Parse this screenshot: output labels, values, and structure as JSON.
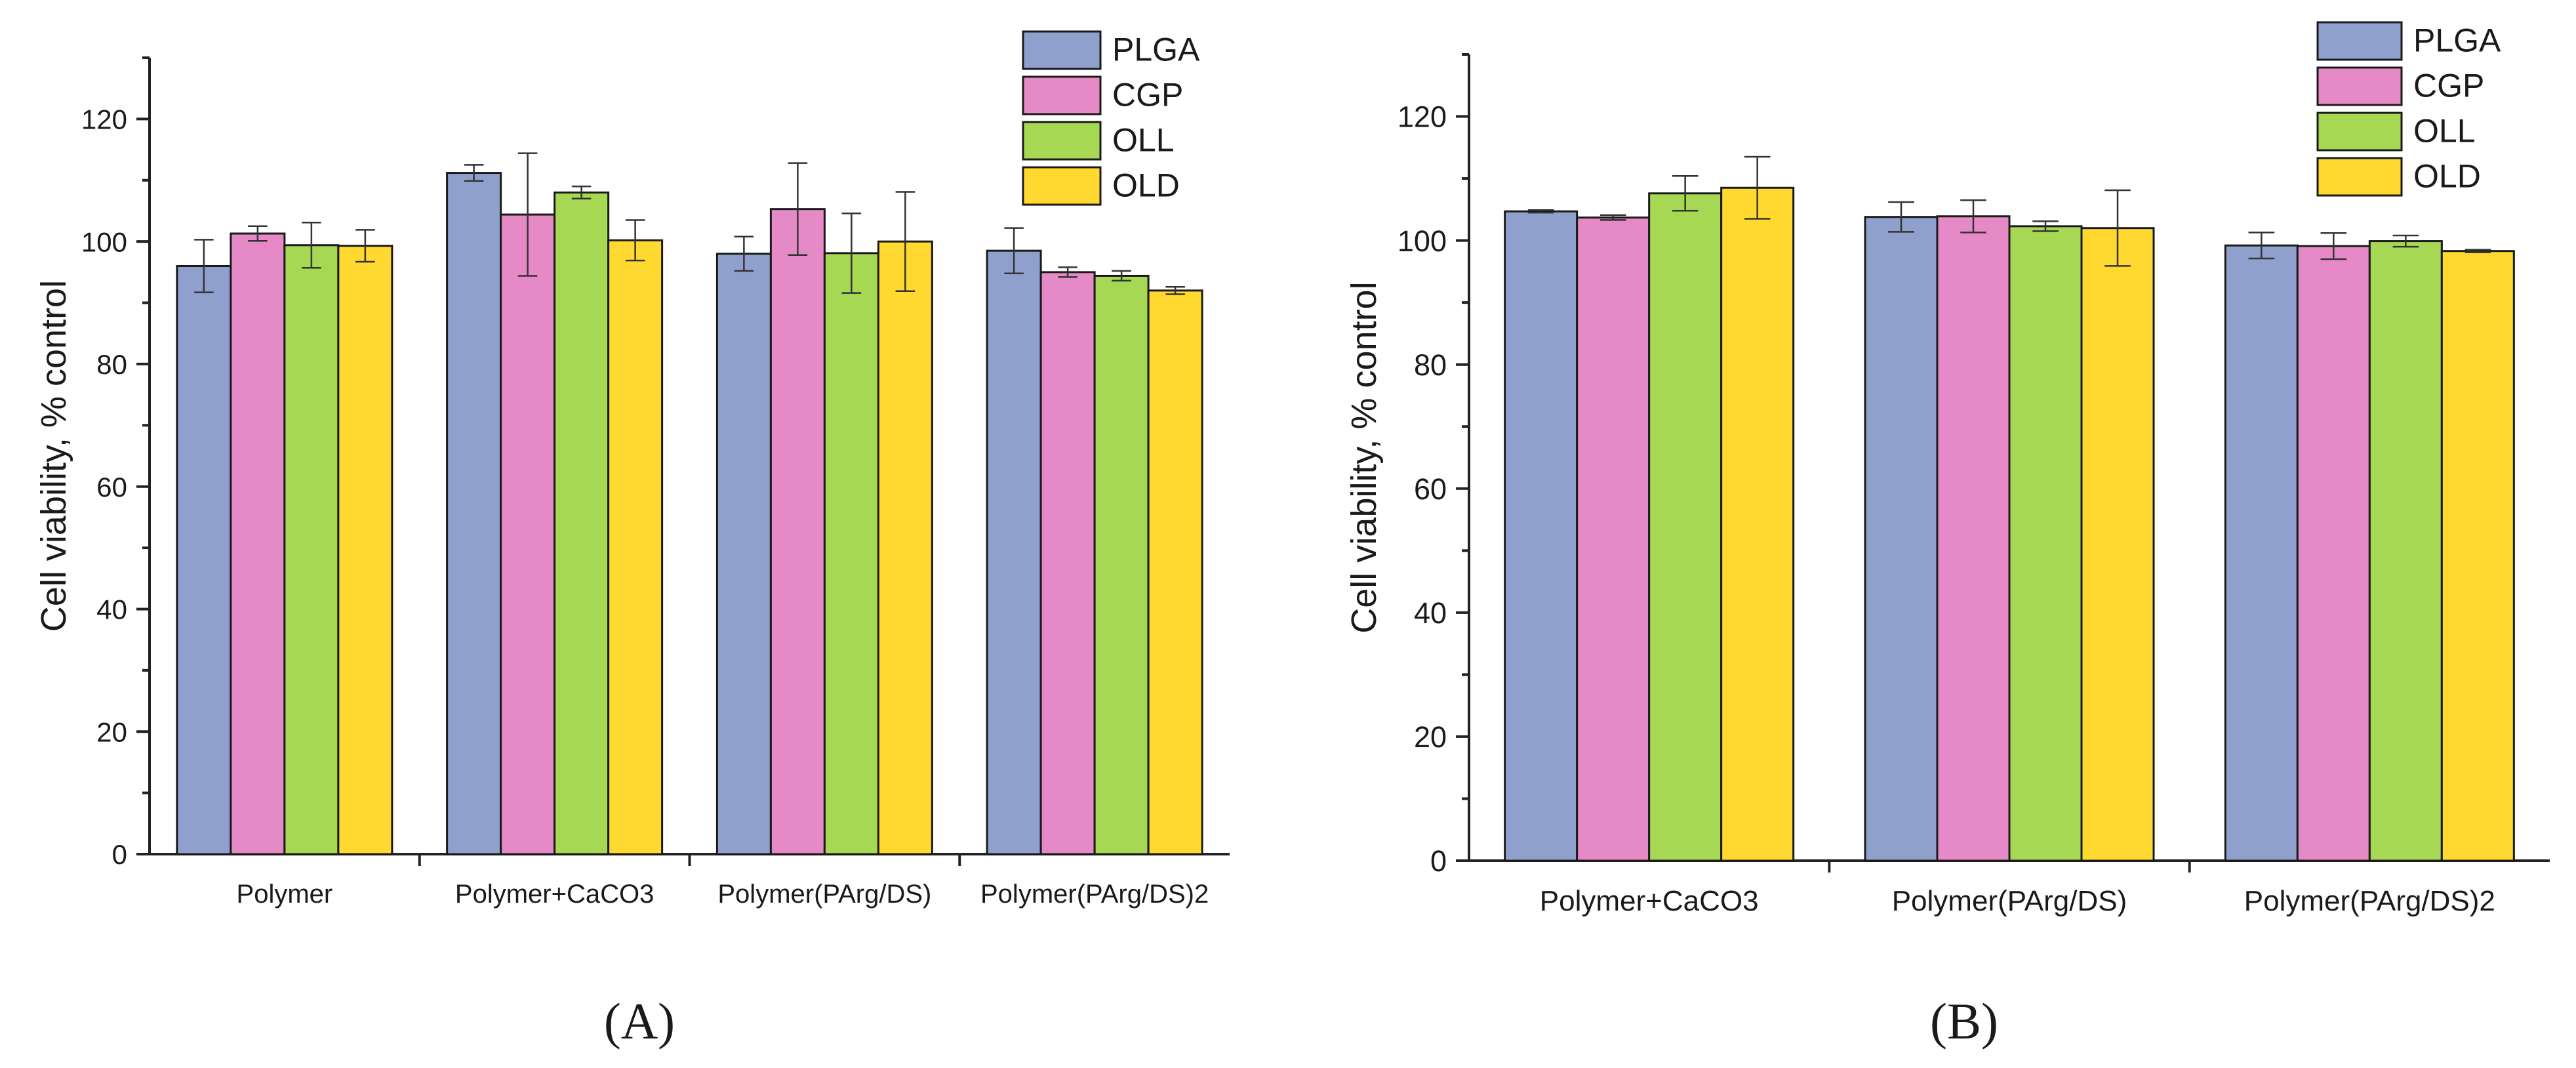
{
  "figure": {
    "panel_labels": [
      "(A)",
      "(B)"
    ]
  },
  "chart_data": [
    {
      "type": "bar",
      "panel": "(A)",
      "title": "",
      "xlabel": "",
      "ylabel": "Cell viability, % control",
      "ylim": [
        0,
        130
      ],
      "yticks": [
        0,
        20,
        40,
        60,
        80,
        100,
        120
      ],
      "grid": false,
      "legend_position": "top-right",
      "categories": [
        "Polymer",
        "Polymer+CaCO3",
        "Polymer(PArg/DS)",
        "Polymer(PArg/DS)2"
      ],
      "series": [
        {
          "name": "PLGA",
          "color": "#8fa0cc",
          "values": [
            96,
            111.2,
            98,
            98.5
          ],
          "errors": [
            4.3,
            1.3,
            2.8,
            3.7
          ]
        },
        {
          "name": "CGP",
          "color": "#e58ac6",
          "values": [
            101.3,
            104.4,
            105.3,
            95
          ],
          "errors": [
            1.2,
            10,
            7.5,
            0.8
          ]
        },
        {
          "name": "OLL",
          "color": "#a6d854",
          "values": [
            99.4,
            108,
            98.1,
            94.4
          ],
          "errors": [
            3.7,
            1,
            6.5,
            0.8
          ]
        },
        {
          "name": "OLD",
          "color": "#ffd92f",
          "values": [
            99.3,
            100.2,
            100,
            92
          ],
          "errors": [
            2.6,
            3.3,
            8.1,
            0.6
          ]
        }
      ]
    },
    {
      "type": "bar",
      "panel": "(B)",
      "title": "",
      "xlabel": "",
      "ylabel": "Cell viability, % control",
      "ylim": [
        0,
        130
      ],
      "yticks": [
        0,
        20,
        40,
        60,
        80,
        100,
        120
      ],
      "grid": false,
      "legend_position": "top-right",
      "categories": [
        "Polymer+CaCO3",
        "Polymer(PArg/DS)",
        "Polymer(PArg/DS)2"
      ],
      "series": [
        {
          "name": "PLGA",
          "color": "#8fa0cc",
          "values": [
            104.7,
            103.8,
            99.2
          ],
          "errors": [
            0.2,
            2.4,
            2.1
          ]
        },
        {
          "name": "CGP",
          "color": "#e58ac6",
          "values": [
            103.7,
            103.9,
            99.1
          ],
          "errors": [
            0.4,
            2.6,
            2.1
          ]
        },
        {
          "name": "OLL",
          "color": "#a6d854",
          "values": [
            107.6,
            102.3,
            99.9
          ],
          "errors": [
            2.8,
            0.8,
            0.9
          ]
        },
        {
          "name": "OLD",
          "color": "#ffd92f",
          "values": [
            108.5,
            102,
            98.3
          ],
          "errors": [
            5,
            6.1,
            0.2
          ]
        }
      ]
    }
  ]
}
